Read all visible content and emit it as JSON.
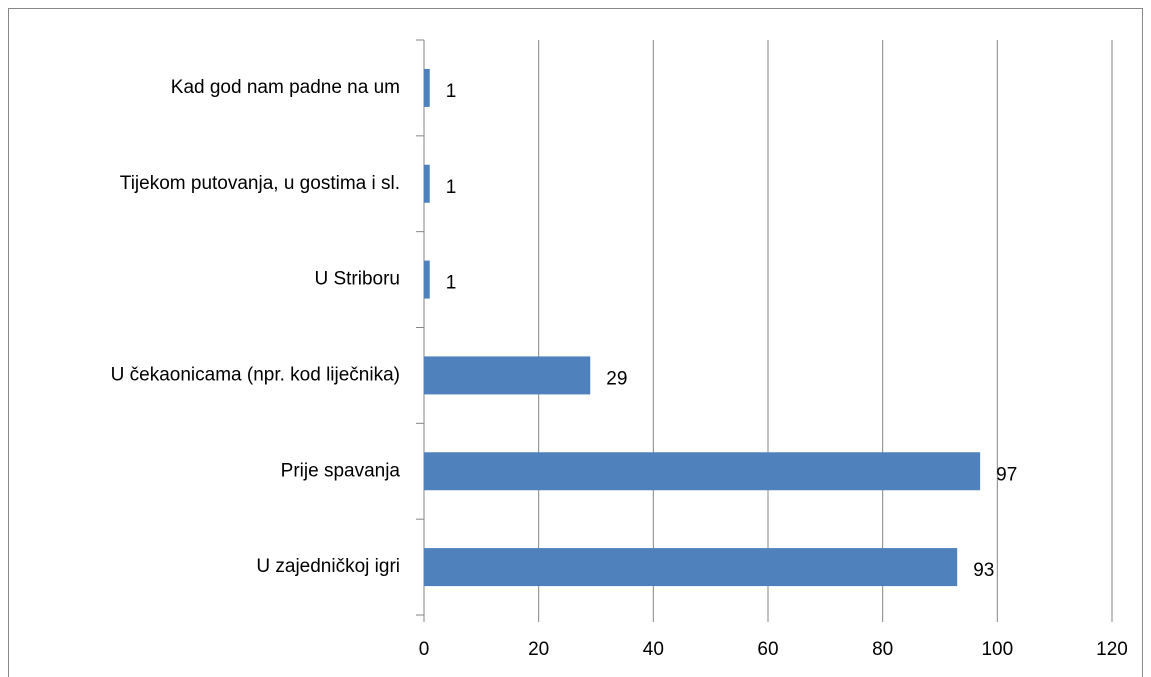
{
  "chart_data": {
    "type": "bar",
    "orientation": "horizontal",
    "categories": [
      "U zajedničkoj igri",
      "Prije spavanja",
      "U čekaonicama (npr. kod liječnika)",
      "U Striboru",
      "Tijekom putovanja, u gostima i sl.",
      "Kad god nam padne na um"
    ],
    "values": [
      93,
      97,
      29,
      1,
      1,
      1
    ],
    "color": "#4f81bd",
    "xlim": [
      0,
      120
    ],
    "xticks": [
      0,
      20,
      40,
      60,
      80,
      100,
      120
    ],
    "grid": true
  }
}
